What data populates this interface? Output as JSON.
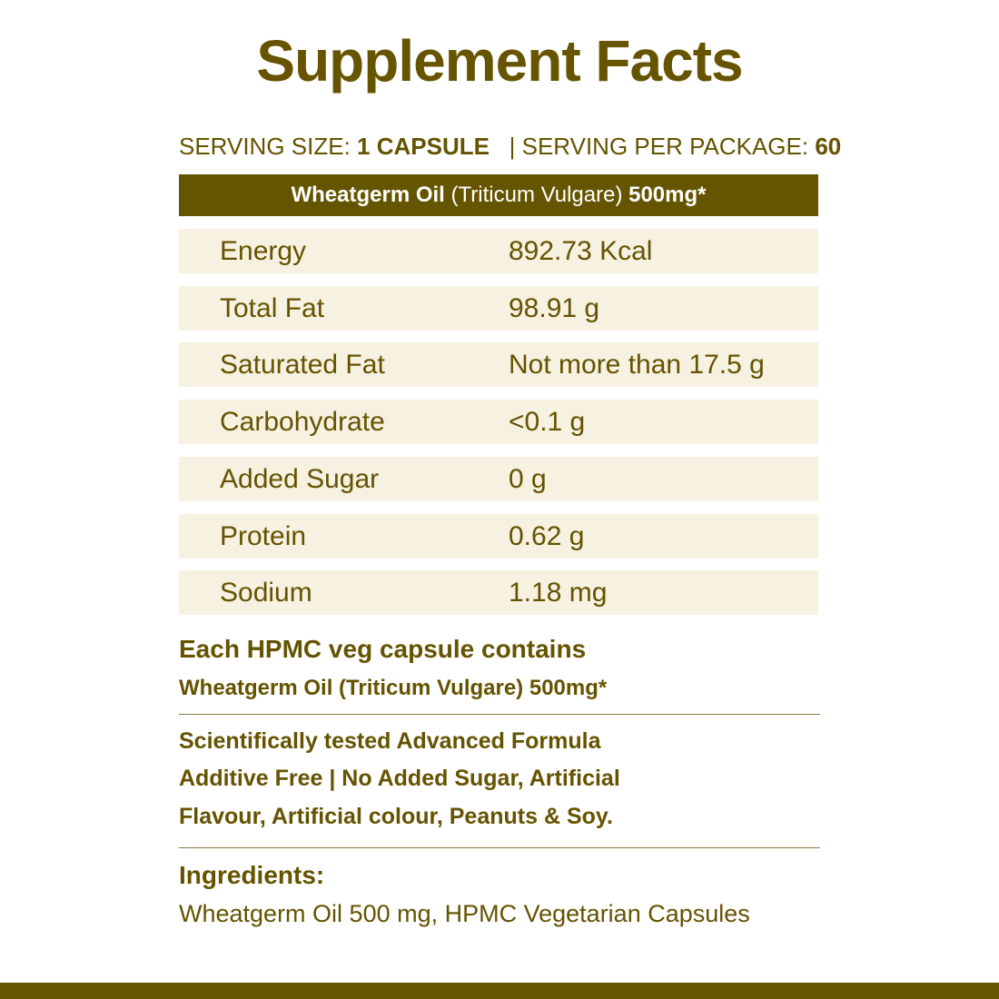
{
  "title": "Supplement Facts",
  "serving": {
    "size_label": "SERVING SIZE:",
    "size_value": "1 CAPSULE",
    "separator": "|",
    "per_label": "SERVING PER PACKAGE:",
    "per_value": "60"
  },
  "header": {
    "name": "Wheatgerm Oil",
    "latin": "(Triticum Vulgare)",
    "dose": "500mg*"
  },
  "rows": [
    {
      "label": "Energy",
      "value": "892.73 Kcal"
    },
    {
      "label": "Total Fat",
      "value": "98.91 g"
    },
    {
      "label": "Saturated Fat",
      "value": "Not more than 17.5 g"
    },
    {
      "label": "Carbohydrate",
      "value": "<0.1 g"
    },
    {
      "label": "Added Sugar",
      "value": "0 g"
    },
    {
      "label": "Protein",
      "value": "0.62 g"
    },
    {
      "label": "Sodium",
      "value": "1.18 mg"
    }
  ],
  "capsule": {
    "heading": "Each HPMC veg capsule contains",
    "content": "Wheatgerm Oil (Triticum Vulgare) 500mg*"
  },
  "features": [
    "Scientifically tested Advanced Formula",
    "Additive Free | No Added Sugar, Artificial",
    "Flavour, Artificial colour, Peanuts & Soy."
  ],
  "ingredients": {
    "heading": "Ingredients:",
    "text": "Wheatgerm Oil 500 mg, HPMC Vegetarian Capsules"
  },
  "colors": {
    "brand": "#665500",
    "row_bg": "#f6f1e1"
  }
}
